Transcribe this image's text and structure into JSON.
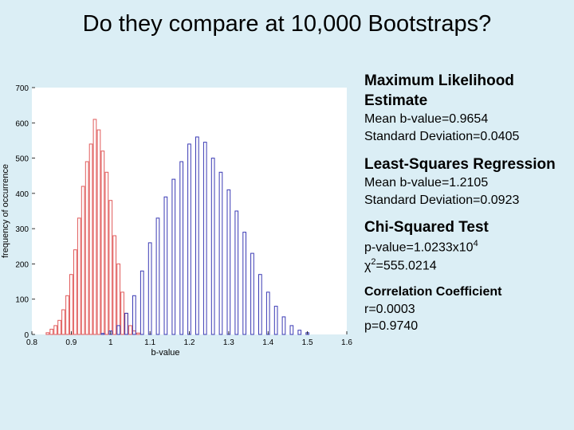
{
  "slide": {
    "title": "Do they compare at 10,000 Bootstraps?"
  },
  "stats": {
    "mle": {
      "title": "Maximum Likelihood Estimate",
      "line1": "Mean b-value=0.9654",
      "line2": "Standard Deviation=0.0405"
    },
    "lsr": {
      "title": "Least-Squares Regression",
      "line1": "Mean b-value=1.2105",
      "line2": "Standard Deviation=0.0923"
    },
    "chi": {
      "title": "Chi-Squared Test",
      "line1_base": "p-value=1.0233x10",
      "line1_sup": "4",
      "line2_pre": "χ",
      "line2_sup": "2",
      "line2_post": "=555.0214"
    },
    "corr": {
      "title": "Correlation Coefficient",
      "line1": "r=0.0003",
      "line2": "p=0.9740"
    }
  },
  "chart_data": {
    "type": "bar",
    "title": "",
    "xlabel": "b-value",
    "ylabel": "frequency of occurrence",
    "xlim": [
      0.8,
      1.6
    ],
    "ylim": [
      0,
      700
    ],
    "xticks": [
      "0.8",
      "0.9",
      "1",
      "1.1",
      "1.2",
      "1.3",
      "1.4",
      "1.5",
      "1.6"
    ],
    "yticks": [
      "0",
      "100",
      "200",
      "300",
      "400",
      "500",
      "600",
      "700"
    ],
    "grid": false,
    "series": [
      {
        "name": "Maximum Likelihood Estimate",
        "color": "#e05a5a",
        "x": [
          0.84,
          0.85,
          0.86,
          0.87,
          0.88,
          0.89,
          0.9,
          0.91,
          0.92,
          0.93,
          0.94,
          0.95,
          0.96,
          0.97,
          0.98,
          0.99,
          1.0,
          1.01,
          1.02,
          1.03,
          1.04,
          1.05,
          1.06,
          1.07
        ],
        "values": [
          5,
          15,
          25,
          40,
          70,
          110,
          170,
          240,
          330,
          420,
          490,
          540,
          610,
          580,
          520,
          460,
          380,
          280,
          200,
          120,
          60,
          25,
          10,
          4
        ]
      },
      {
        "name": "Least-Squares Regression",
        "color": "#3a3ab4",
        "x": [
          0.98,
          1.0,
          1.02,
          1.04,
          1.06,
          1.08,
          1.1,
          1.12,
          1.14,
          1.16,
          1.18,
          1.2,
          1.22,
          1.24,
          1.26,
          1.28,
          1.3,
          1.32,
          1.34,
          1.36,
          1.38,
          1.4,
          1.42,
          1.44,
          1.46,
          1.48,
          1.5
        ],
        "values": [
          3,
          10,
          25,
          60,
          110,
          180,
          260,
          330,
          390,
          440,
          490,
          540,
          560,
          545,
          500,
          460,
          410,
          350,
          290,
          230,
          170,
          120,
          80,
          50,
          25,
          12,
          5
        ]
      }
    ]
  }
}
